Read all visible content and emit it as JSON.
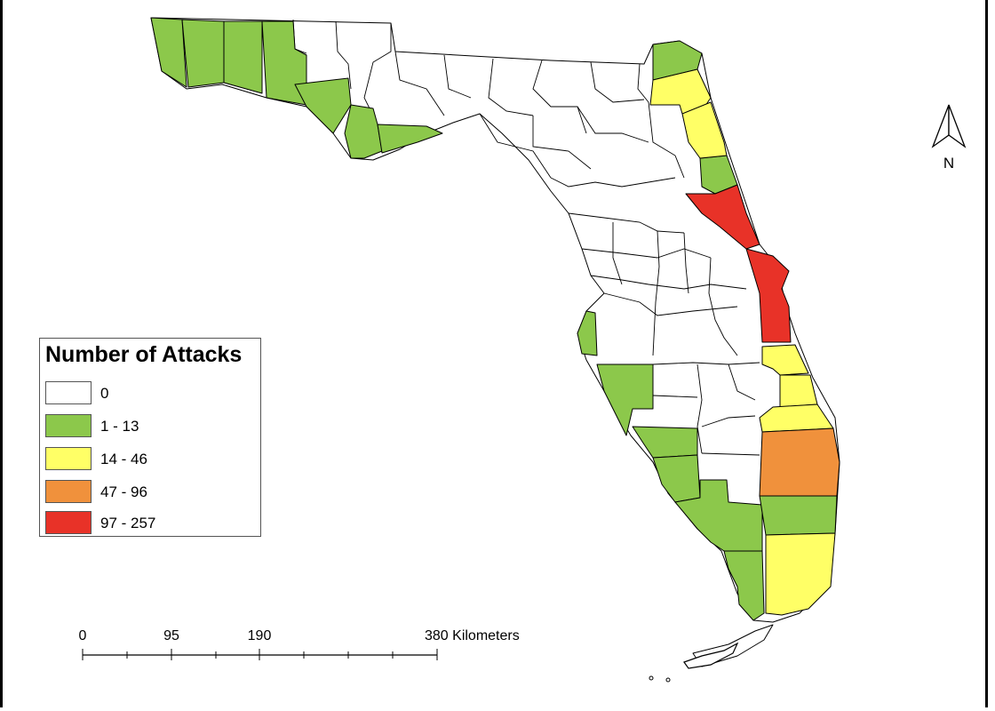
{
  "legend": {
    "title": "Number of Attacks",
    "items": [
      {
        "label": "0",
        "color": "#ffffff"
      },
      {
        "label": "1 - 13",
        "color": "#8cc84b"
      },
      {
        "label": "14 - 46",
        "color": "#ffff66"
      },
      {
        "label": "47 - 96",
        "color": "#f0913c"
      },
      {
        "label": "97 - 257",
        "color": "#e83228"
      }
    ]
  },
  "scale_bar": {
    "labels": [
      "0",
      "95",
      "190",
      "380 Kilometers"
    ]
  },
  "north_arrow": {
    "label": "N"
  }
}
